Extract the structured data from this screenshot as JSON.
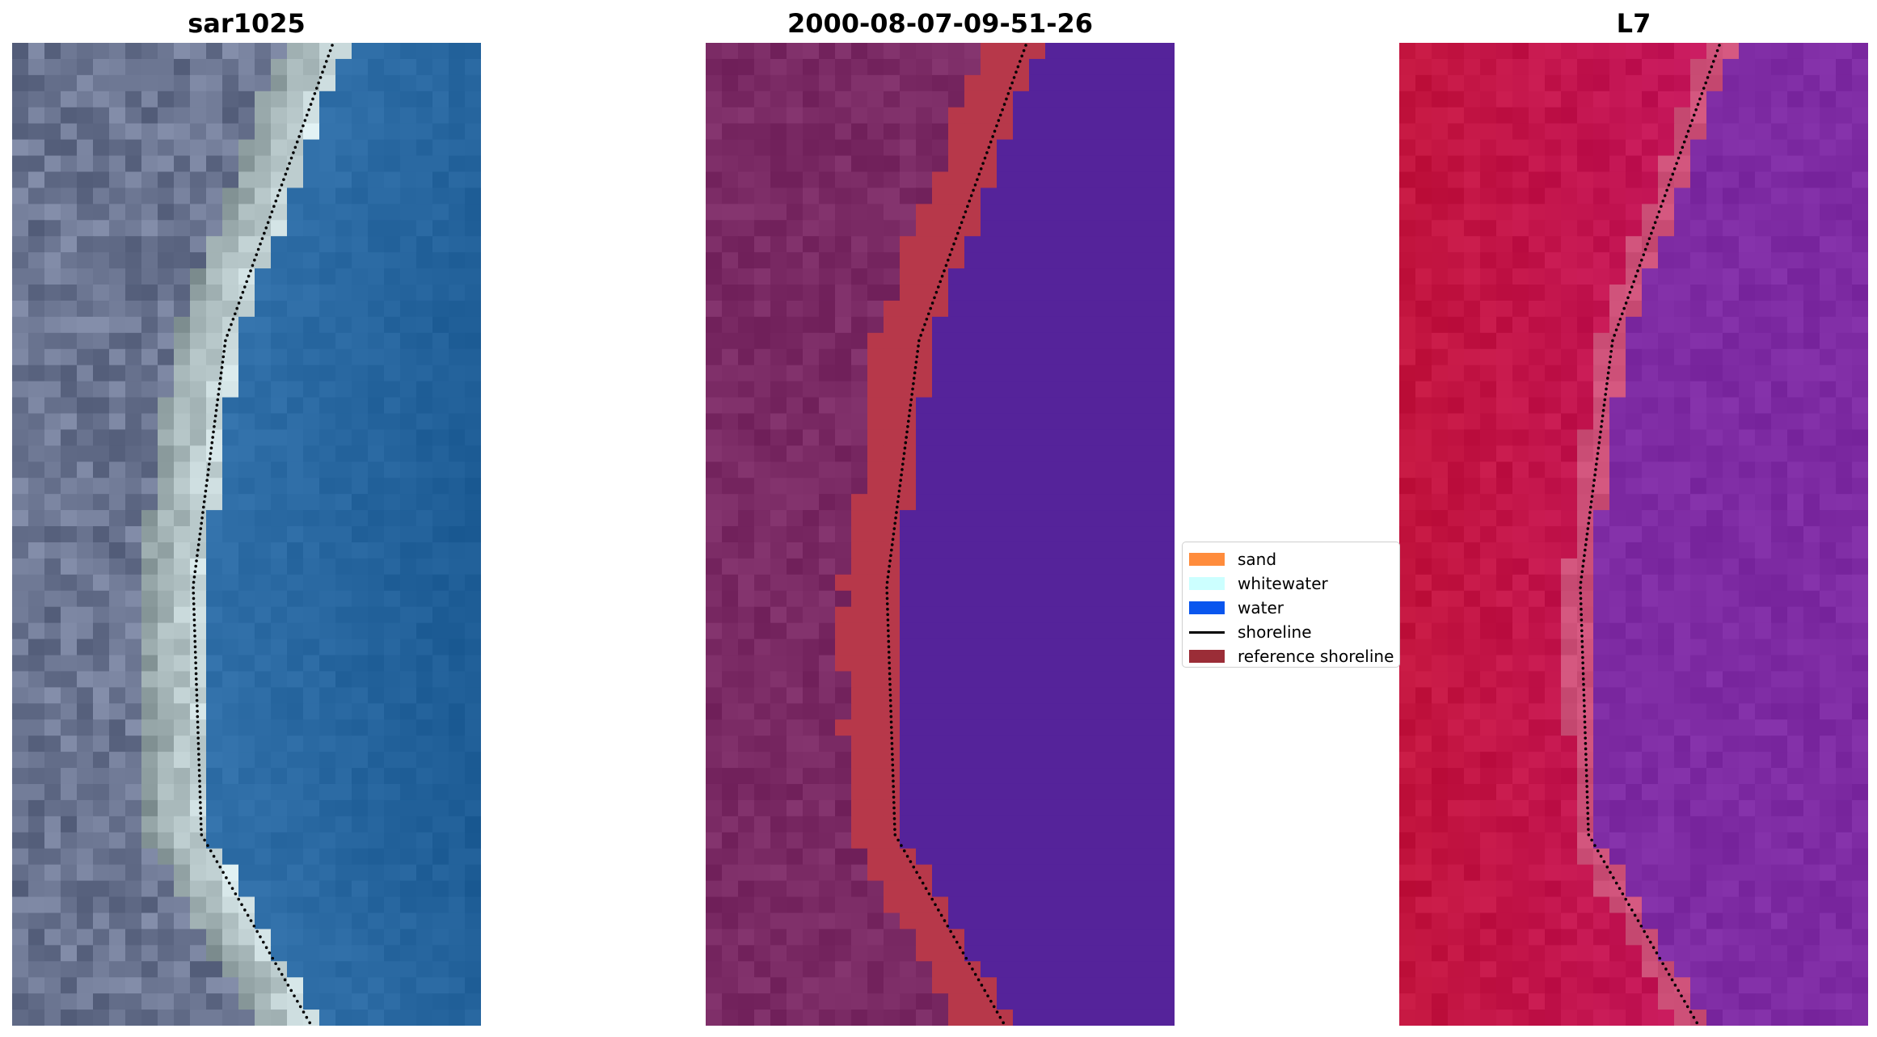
{
  "panels": [
    {
      "title": "sar1025"
    },
    {
      "title": "2000-08-07-09-51-26"
    },
    {
      "title": "L7"
    }
  ],
  "legend": {
    "items": [
      {
        "label": "sand",
        "kind": "patch",
        "color": "#ff8c3c"
      },
      {
        "label": "whitewater",
        "kind": "patch",
        "color": "#ccffff"
      },
      {
        "label": "water",
        "kind": "patch",
        "color": "#0a56ee"
      },
      {
        "label": "shoreline",
        "kind": "line",
        "color": "#000000"
      },
      {
        "label": "reference shoreline",
        "kind": "patch",
        "color": "#9b2d37"
      }
    ]
  },
  "colors": {
    "rgb_land": "#6b7591",
    "rgb_water": "#2f6ea3",
    "rgb_sand": "#e8eef0",
    "class_land": "#7a2a64",
    "class_sand": "#b7384a",
    "class_water": "#55239a",
    "l7_land": "#c2143e",
    "l7_water": "#7e2ba3",
    "shoreline_dots": "#000000"
  }
}
